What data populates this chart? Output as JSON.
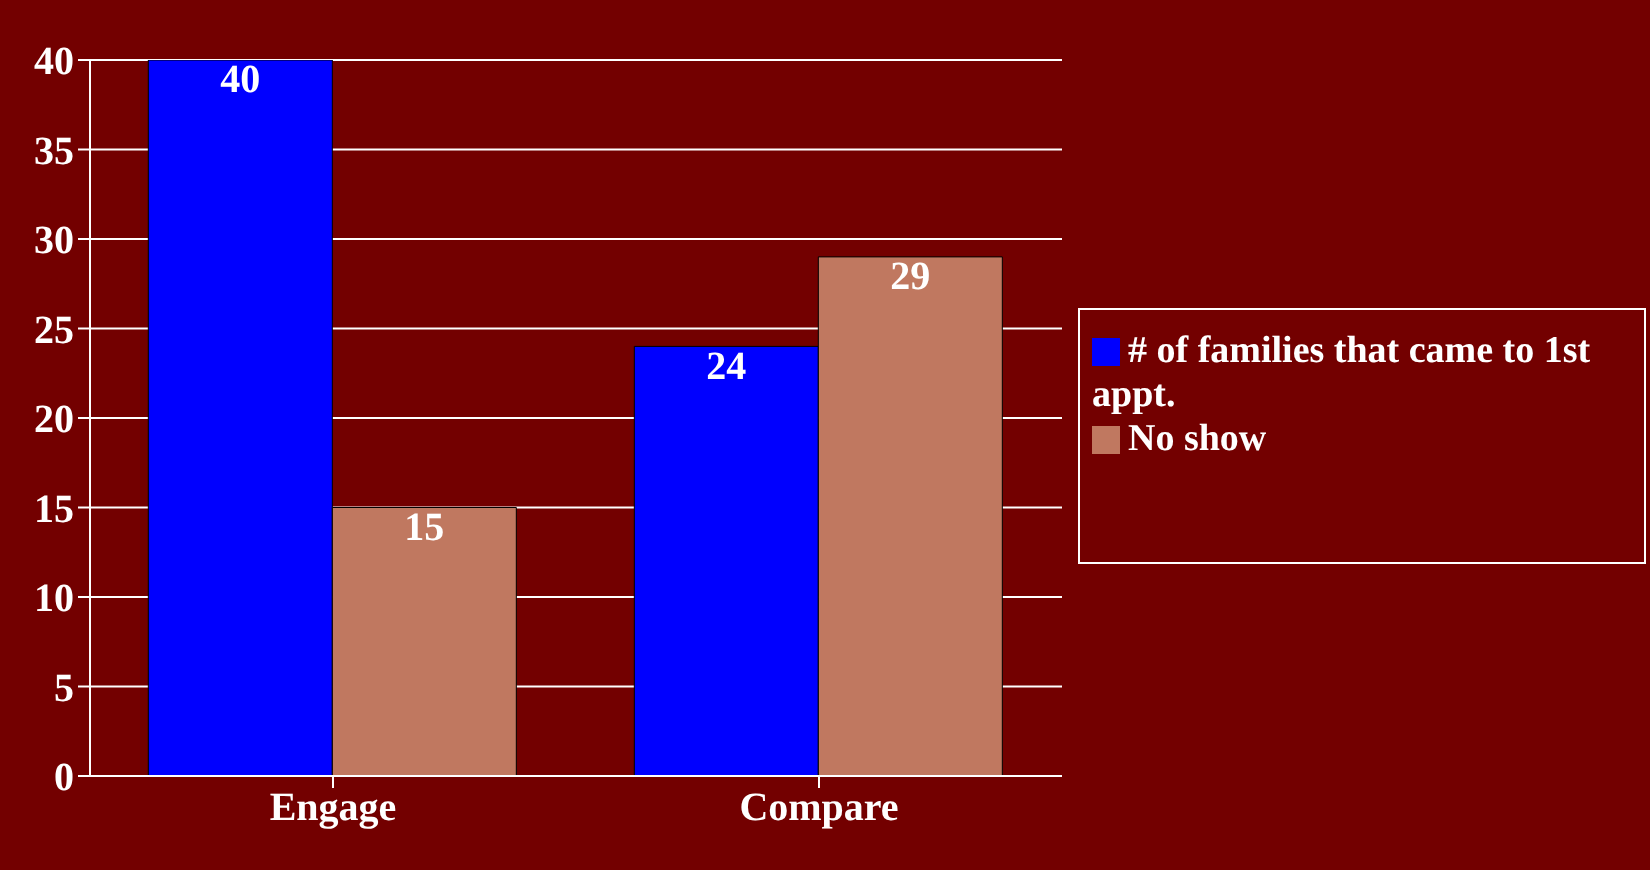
{
  "chart_data": {
    "type": "bar",
    "categories": [
      "Engage",
      "Compare"
    ],
    "series": [
      {
        "name": "# of families that came to 1st appt.",
        "color": "#0000ff",
        "values": [
          40,
          24
        ]
      },
      {
        "name": "No show",
        "color": "#c07860",
        "values": [
          15,
          29
        ]
      }
    ],
    "ylim": [
      0,
      40
    ],
    "yticks": [
      0,
      5,
      10,
      15,
      20,
      25,
      30,
      35,
      40
    ],
    "grid": "y",
    "legend": "right",
    "data_labels": true
  }
}
